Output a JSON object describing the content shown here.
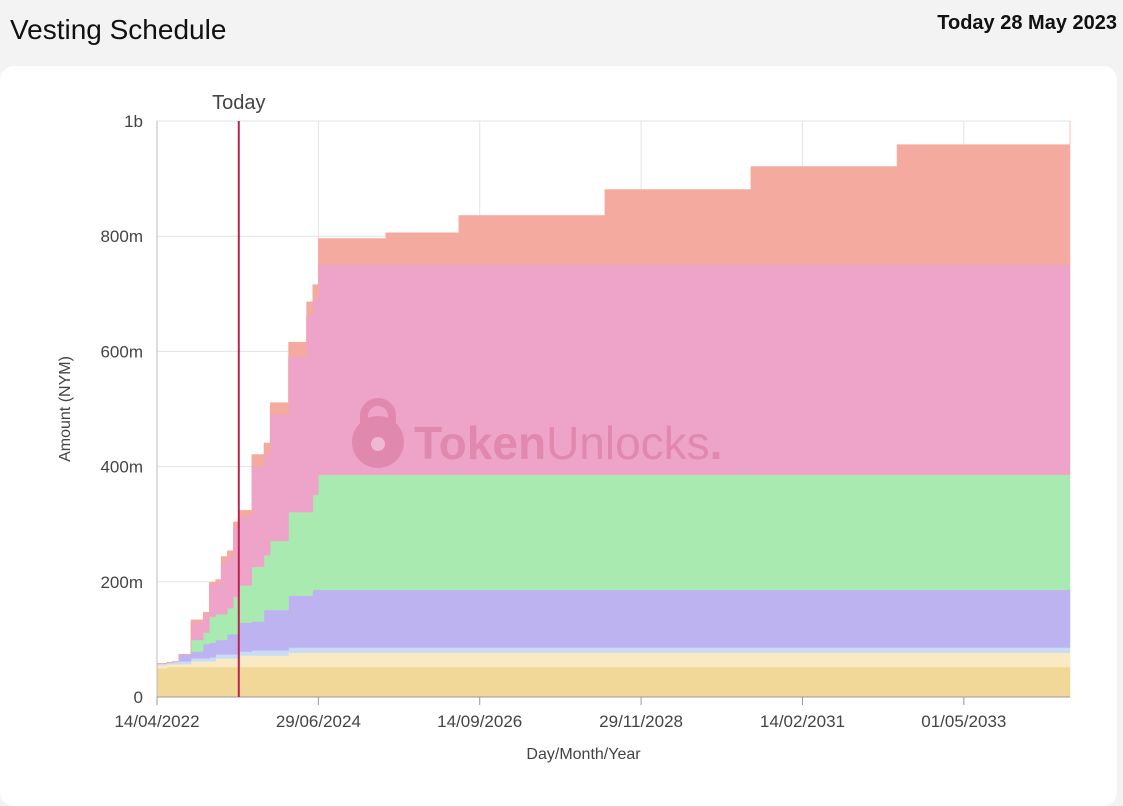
{
  "header": {
    "title": "Vesting Schedule",
    "today": "Today 28 May 2023"
  },
  "watermark": {
    "brand_bold": "Token",
    "brand_light": "Unlocks",
    "brand_dot": "."
  },
  "chart_data": {
    "type": "area",
    "stacked": true,
    "step": true,
    "xlabel": "Day/Month/Year",
    "ylabel": "Amount (NYM)",
    "ylim": [
      0,
      1000
    ],
    "y_unit": "millions",
    "yticks": [
      0,
      200,
      400,
      600,
      800,
      1000
    ],
    "ytick_labels": [
      "0",
      "200m",
      "400m",
      "600m",
      "800m",
      "1b"
    ],
    "xlim": [
      "2022-04-14",
      "2034-10-14"
    ],
    "xticks": [
      "2022-04-14",
      "2024-06-29",
      "2026-09-14",
      "2028-11-29",
      "2031-02-14",
      "2033-05-01"
    ],
    "xtick_labels": [
      "14/04/2022",
      "29/06/2024",
      "14/09/2026",
      "29/11/2028",
      "14/02/2031",
      "01/05/2033"
    ],
    "grid": true,
    "today_marker": {
      "date": "2023-05-28",
      "label": "Today"
    },
    "series": [
      {
        "color": "#f2d898",
        "points": [
          [
            "2022-04-14",
            50
          ],
          [
            "2022-06-01",
            52
          ],
          [
            "2034-10-14",
            52
          ]
        ]
      },
      {
        "color": "#faeac4",
        "points": [
          [
            "2022-04-14",
            5
          ],
          [
            "2022-06-01",
            5
          ],
          [
            "2022-10-01",
            10
          ],
          [
            "2023-02-01",
            15
          ],
          [
            "2023-06-01",
            20
          ],
          [
            "2024-02-01",
            25
          ],
          [
            "2034-10-14",
            25
          ]
        ]
      },
      {
        "color": "#c8dcf6",
        "points": [
          [
            "2022-04-14",
            3
          ],
          [
            "2022-07-01",
            5
          ],
          [
            "2023-01-01",
            7
          ],
          [
            "2023-08-01",
            9
          ],
          [
            "2034-10-14",
            10
          ]
        ]
      },
      {
        "color": "#bcb3f0",
        "points": [
          [
            "2022-04-14",
            0
          ],
          [
            "2022-08-01",
            12
          ],
          [
            "2022-12-01",
            25
          ],
          [
            "2023-04-01",
            35
          ],
          [
            "2023-06-01",
            50
          ],
          [
            "2023-10-01",
            70
          ],
          [
            "2024-02-01",
            90
          ],
          [
            "2024-06-01",
            100
          ],
          [
            "2034-10-14",
            100
          ]
        ]
      },
      {
        "color": "#a8eab0",
        "points": [
          [
            "2022-04-14",
            0
          ],
          [
            "2022-10-01",
            20
          ],
          [
            "2023-01-01",
            45
          ],
          [
            "2023-05-01",
            65
          ],
          [
            "2023-08-01",
            95
          ],
          [
            "2023-11-01",
            120
          ],
          [
            "2024-02-01",
            145
          ],
          [
            "2024-06-01",
            165
          ],
          [
            "2024-06-29",
            200
          ],
          [
            "2034-10-14",
            200
          ]
        ]
      },
      {
        "color": "#eea4c8",
        "points": [
          [
            "2022-04-14",
            0
          ],
          [
            "2022-10-01",
            30
          ],
          [
            "2023-01-01",
            55
          ],
          [
            "2023-03-01",
            90
          ],
          [
            "2023-05-01",
            120
          ],
          [
            "2023-08-01",
            175
          ],
          [
            "2023-11-01",
            220
          ],
          [
            "2024-02-01",
            270
          ],
          [
            "2024-05-01",
            340
          ],
          [
            "2024-06-29",
            365
          ],
          [
            "2034-10-14",
            365
          ]
        ]
      },
      {
        "color": "#f4aa9e",
        "points": [
          [
            "2022-04-14",
            0
          ],
          [
            "2022-10-01",
            5
          ],
          [
            "2023-03-01",
            10
          ],
          [
            "2023-08-01",
            20
          ],
          [
            "2024-02-01",
            25
          ],
          [
            "2024-06-29",
            45
          ],
          [
            "2025-06-01",
            55
          ],
          [
            "2026-06-01",
            85
          ],
          [
            "2028-06-01",
            130
          ],
          [
            "2030-06-01",
            170
          ],
          [
            "2032-06-01",
            208
          ],
          [
            "2034-10-14",
            248
          ]
        ]
      }
    ]
  }
}
